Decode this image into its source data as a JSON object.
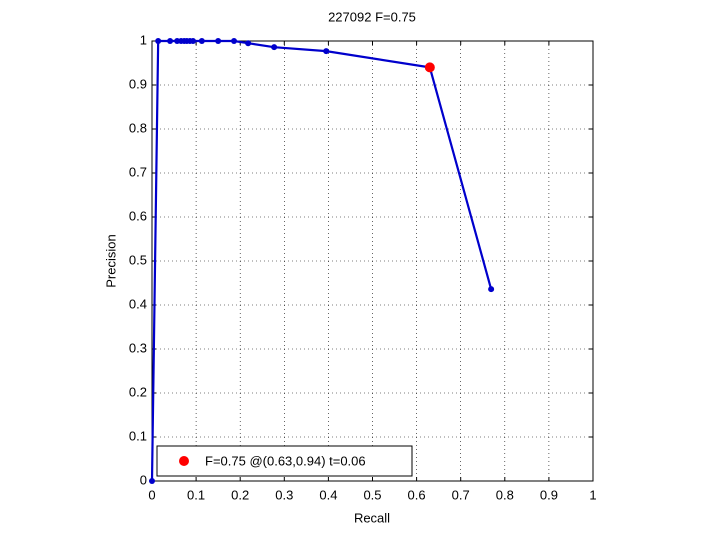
{
  "chart_data": {
    "type": "line",
    "title": "227092 F=0.75",
    "xlabel": "Recall",
    "ylabel": "Precision",
    "xlim": [
      0,
      1
    ],
    "ylim": [
      0,
      1
    ],
    "xticks": [
      0,
      0.1,
      0.2,
      0.3,
      0.4,
      0.5,
      0.6,
      0.7,
      0.8,
      0.9,
      1
    ],
    "yticks": [
      0,
      0.1,
      0.2,
      0.3,
      0.4,
      0.5,
      0.6,
      0.7,
      0.8,
      0.9,
      1
    ],
    "grid": true,
    "legend": "lower left",
    "series": [
      {
        "color": "#0000cc",
        "x": [
          0,
          0.014,
          0.041,
          0.057,
          0.066,
          0.073,
          0.079,
          0.086,
          0.093,
          0.113,
          0.15,
          0.186,
          0.218,
          0.277,
          0.395,
          0.63,
          0.769
        ],
        "values": [
          0,
          1,
          1,
          1,
          1,
          1,
          1,
          1,
          1,
          1,
          1,
          1,
          0.995,
          0.986,
          0.977,
          0.94,
          0.436
        ]
      },
      {
        "name": "F=0.75 @(0.63,0.94) t=0.06",
        "color": "#ff0000",
        "x": [
          0.63
        ],
        "values": [
          0.94
        ]
      }
    ]
  }
}
